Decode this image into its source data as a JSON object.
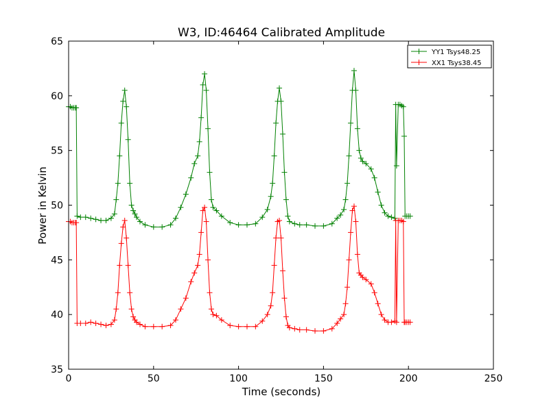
{
  "chart_data": {
    "type": "line",
    "title": "W3, ID:46464 Calibrated Amplitude",
    "xlabel": "Time (seconds)",
    "ylabel": "Power in Kelvin",
    "xlim": [
      0,
      250
    ],
    "ylim": [
      35,
      65
    ],
    "xticks": [
      0,
      50,
      100,
      150,
      200,
      250
    ],
    "yticks": [
      35,
      40,
      45,
      50,
      55,
      60,
      65
    ],
    "legend_position": "top-right",
    "grid": false,
    "series": [
      {
        "name": "YY1 Tsys48.25",
        "color": "#008000",
        "marker": "+",
        "x": [
          0,
          1,
          2,
          3,
          4,
          4.5,
          5,
          7,
          10,
          13,
          16,
          19,
          22,
          25,
          27,
          28,
          29,
          30,
          31,
          32,
          33,
          34,
          35,
          36,
          37,
          38,
          39,
          40,
          42,
          45,
          50,
          55,
          60,
          63,
          66,
          69,
          72,
          74,
          76,
          77,
          78,
          79,
          80,
          81,
          82,
          83,
          84,
          85,
          87,
          90,
          95,
          100,
          105,
          110,
          114,
          117,
          119,
          120,
          121,
          122,
          123,
          124,
          125,
          126,
          127,
          128,
          129,
          130,
          133,
          136,
          140,
          145,
          150,
          155,
          158,
          160,
          162,
          163,
          164,
          165,
          166,
          167,
          168,
          169,
          170,
          171,
          172,
          173,
          175,
          178,
          180,
          182,
          184,
          186,
          188,
          190,
          192,
          192.5,
          193,
          194,
          195,
          196,
          197,
          197.5,
          198,
          199,
          200,
          201
        ],
        "values": [
          59.0,
          59.0,
          58.9,
          58.9,
          58.9,
          58.9,
          49.0,
          48.9,
          48.9,
          48.8,
          48.7,
          48.6,
          48.6,
          48.8,
          49.2,
          50.5,
          52.0,
          54.5,
          57.5,
          59.5,
          60.5,
          59.0,
          56.0,
          52.0,
          50.0,
          49.5,
          49.2,
          48.9,
          48.5,
          48.2,
          48.0,
          48.0,
          48.2,
          48.8,
          49.8,
          51.0,
          52.5,
          53.8,
          54.5,
          55.8,
          58.0,
          61.0,
          62.0,
          60.5,
          57.0,
          53.0,
          50.5,
          49.8,
          49.5,
          49.0,
          48.4,
          48.2,
          48.2,
          48.3,
          48.9,
          49.6,
          50.8,
          52.0,
          54.5,
          57.5,
          59.5,
          60.7,
          59.5,
          56.5,
          53.0,
          50.5,
          49.0,
          48.5,
          48.3,
          48.2,
          48.2,
          48.1,
          48.1,
          48.3,
          48.8,
          49.1,
          49.6,
          50.5,
          52.0,
          54.5,
          57.5,
          60.5,
          62.3,
          60.5,
          57.0,
          55.0,
          54.3,
          54.0,
          53.8,
          53.3,
          52.5,
          51.2,
          50.0,
          49.3,
          49.0,
          48.9,
          48.8,
          59.2,
          53.6,
          59.2,
          59.2,
          59.1,
          59.0,
          56.3,
          49.0,
          49.0,
          49.0,
          49.0
        ]
      },
      {
        "name": "XX1 Tsys38.45",
        "color": "#ff0000",
        "marker": "+",
        "x": [
          0,
          1,
          2,
          3,
          4,
          4.5,
          5,
          7,
          10,
          13,
          16,
          19,
          22,
          25,
          27,
          28,
          29,
          30,
          31,
          32,
          33,
          34,
          35,
          36,
          37,
          38,
          39,
          40,
          42,
          45,
          50,
          55,
          60,
          63,
          66,
          69,
          72,
          74,
          76,
          77,
          78,
          79,
          80,
          81,
          82,
          83,
          84,
          85,
          87,
          90,
          95,
          100,
          105,
          110,
          114,
          117,
          119,
          120,
          121,
          122,
          123,
          124,
          125,
          126,
          127,
          128,
          129,
          130,
          133,
          136,
          140,
          145,
          150,
          155,
          158,
          160,
          162,
          163,
          164,
          165,
          166,
          167,
          168,
          169,
          170,
          171,
          172,
          173,
          175,
          178,
          180,
          182,
          184,
          186,
          188,
          190,
          192,
          192.5,
          193,
          194,
          195,
          196,
          197,
          197.5,
          198,
          199,
          200,
          201
        ],
        "values": [
          48.5,
          48.5,
          48.4,
          48.4,
          48.4,
          48.4,
          39.2,
          39.2,
          39.2,
          39.3,
          39.2,
          39.1,
          39.0,
          39.1,
          39.5,
          40.5,
          42.0,
          44.5,
          46.5,
          48.0,
          48.6,
          47.0,
          44.5,
          42.0,
          40.5,
          39.8,
          39.5,
          39.3,
          39.1,
          38.9,
          38.9,
          38.9,
          39.0,
          39.5,
          40.5,
          41.5,
          43.0,
          43.8,
          44.5,
          45.5,
          47.5,
          49.5,
          49.8,
          48.5,
          45.0,
          42.0,
          40.5,
          40.0,
          39.9,
          39.5,
          39.0,
          38.9,
          38.9,
          38.9,
          39.4,
          40.0,
          40.8,
          42.0,
          44.5,
          47.0,
          48.5,
          48.6,
          47.0,
          44.0,
          41.5,
          39.8,
          39.0,
          38.8,
          38.7,
          38.6,
          38.6,
          38.5,
          38.5,
          38.7,
          39.2,
          39.6,
          40.0,
          41.0,
          42.5,
          45.0,
          47.5,
          49.5,
          49.9,
          48.5,
          45.5,
          43.8,
          43.6,
          43.4,
          43.2,
          42.8,
          42.0,
          41.0,
          40.0,
          39.5,
          39.3,
          39.3,
          39.4,
          48.6,
          39.3,
          48.6,
          48.6,
          48.6,
          48.5,
          39.3,
          39.3,
          39.3,
          39.3,
          39.3
        ]
      }
    ]
  }
}
